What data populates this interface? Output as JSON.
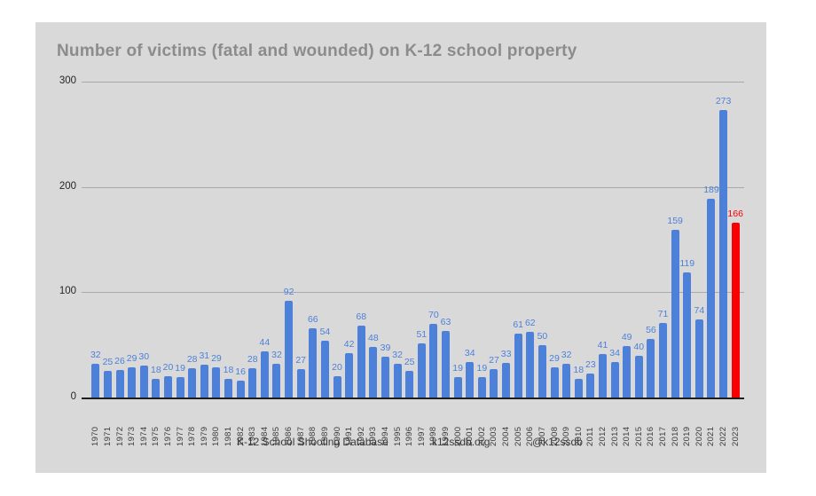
{
  "title": "Number of victims (fatal and wounded) on K-12 school property",
  "footer": {
    "items": [
      "K-12 School Shooting Database",
      "k12ssdb.org",
      "@k12ssdb"
    ]
  },
  "colors": {
    "page_background": "#ffffff",
    "card_background": "#d9d9d9",
    "bar": "#4d80d8",
    "bar_label": "#4d80d8",
    "highlight_bar": "#f80000",
    "highlight_label": "#f80000",
    "gridline": "#a9a9a9",
    "axis_line": "#1f1f1f",
    "title": "#8c8c8c"
  },
  "chart_data": {
    "type": "bar",
    "title": "Number of victims (fatal and wounded) on K-12 school property",
    "categories": [
      "1970",
      "1971",
      "1972",
      "1973",
      "1974",
      "1975",
      "1976",
      "1977",
      "1978",
      "1979",
      "1980",
      "1981",
      "1982",
      "1983",
      "1984",
      "1985",
      "1986",
      "1987",
      "1988",
      "1989",
      "1990",
      "1991",
      "1992",
      "1993",
      "1994",
      "1995",
      "1996",
      "1997",
      "1998",
      "1999",
      "2000",
      "2001",
      "2002",
      "2003",
      "2004",
      "2005",
      "2006",
      "2007",
      "2008",
      "2009",
      "2010",
      "2011",
      "2012",
      "2013",
      "2014",
      "2015",
      "2016",
      "2017",
      "2018",
      "2019",
      "2020",
      "2021",
      "2022",
      "2023"
    ],
    "values": [
      32,
      25,
      26,
      29,
      30,
      18,
      20,
      19,
      28,
      31,
      29,
      18,
      16,
      28,
      44,
      32,
      92,
      27,
      66,
      54,
      20,
      42,
      68,
      48,
      39,
      32,
      25,
      51,
      70,
      63,
      19,
      34,
      19,
      27,
      33,
      61,
      62,
      50,
      29,
      32,
      18,
      23,
      41,
      34,
      49,
      40,
      56,
      71,
      159,
      119,
      74,
      189,
      273,
      166
    ],
    "highlight_index": 53,
    "xlabel": "",
    "ylabel": "",
    "ylim": [
      0,
      300
    ],
    "yticks": [
      0,
      100,
      200,
      300
    ],
    "grid": true,
    "legend": "none",
    "value_labels": true
  }
}
